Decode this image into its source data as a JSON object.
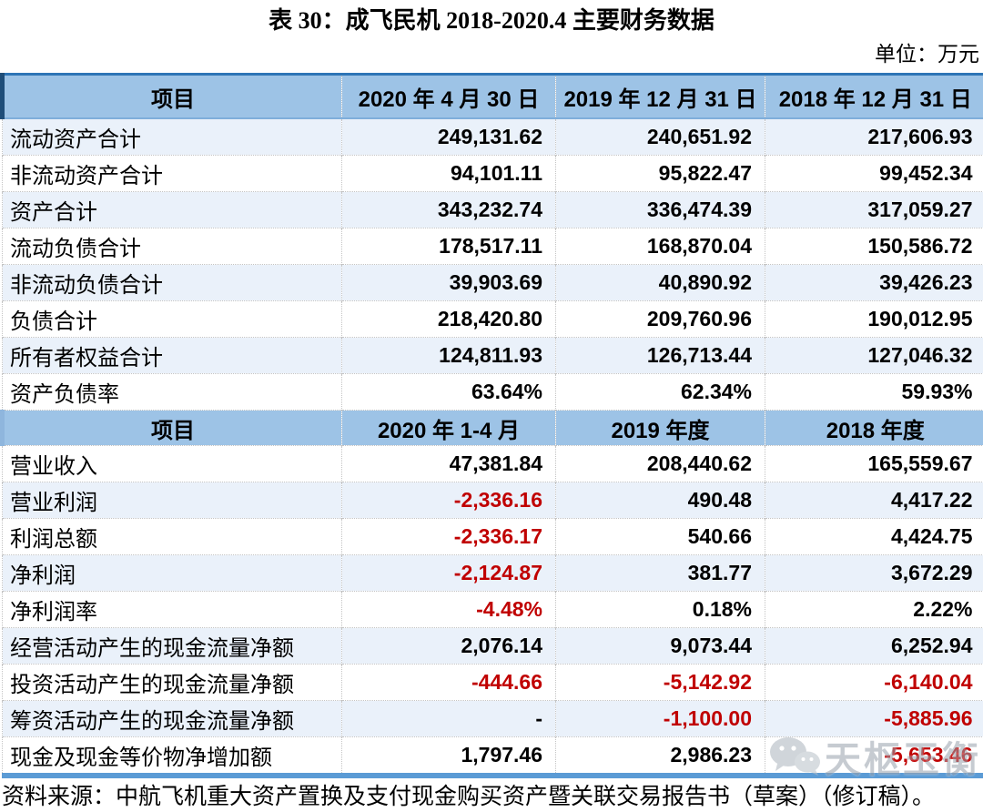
{
  "title": "表 30：成飞民机 2018-2020.4 主要财务数据",
  "unit_note": "单位：万元",
  "source_note": "资料来源：中航飞机重大资产置换及支付现金购买资产暨关联交易报告书（草案）（修订稿）。",
  "watermark": {
    "icon": "wechat-icon",
    "text": "天枢玉衡"
  },
  "colors": {
    "header_bg": "#9DC3E6",
    "alt_row_bg": "#EAF1FA",
    "top_border": "#2E75B6",
    "thick_bottom_border": "#5B9BD5",
    "negative_value": "#C00000"
  },
  "chart_data": {
    "type": "table",
    "title": "表 30：成飞民机 2018-2020.4 主要财务数据",
    "unit": "万元",
    "sections": [
      {
        "headers": [
          "项目",
          "2020 年 4 月 30 日",
          "2019 年 12 月 31 日",
          "2018 年 12 月 31 日"
        ],
        "rows": [
          {
            "label": "流动资产合计",
            "values": [
              "249,131.62",
              "240,651.92",
              "217,606.93"
            ],
            "shaded": true
          },
          {
            "label": "非流动资产合计",
            "values": [
              "94,101.11",
              "95,822.47",
              "99,452.34"
            ],
            "shaded": false
          },
          {
            "label": "资产合计",
            "values": [
              "343,232.74",
              "336,474.39",
              "317,059.27"
            ],
            "shaded": true
          },
          {
            "label": "流动负债合计",
            "values": [
              "178,517.11",
              "168,870.04",
              "150,586.72"
            ],
            "shaded": false
          },
          {
            "label": "非流动负债合计",
            "values": [
              "39,903.69",
              "40,890.92",
              "39,426.23"
            ],
            "shaded": true
          },
          {
            "label": "负债合计",
            "values": [
              "218,420.80",
              "209,760.96",
              "190,012.95"
            ],
            "shaded": false
          },
          {
            "label": "所有者权益合计",
            "values": [
              "124,811.93",
              "126,713.44",
              "127,046.32"
            ],
            "shaded": true
          },
          {
            "label": "资产负债率",
            "values": [
              "63.64%",
              "62.34%",
              "59.93%"
            ],
            "shaded": false
          }
        ]
      },
      {
        "headers": [
          "项目",
          "2020 年 1-4 月",
          "2019 年度",
          "2018 年度"
        ],
        "rows": [
          {
            "label": "营业收入",
            "values": [
              "47,381.84",
              "208,440.62",
              "165,559.67"
            ],
            "shaded": false
          },
          {
            "label": "营业利润",
            "values": [
              "-2,336.16",
              "490.48",
              "4,417.22"
            ],
            "shaded": true
          },
          {
            "label": "利润总额",
            "values": [
              "-2,336.17",
              "540.66",
              "4,424.75"
            ],
            "shaded": false
          },
          {
            "label": "净利润",
            "values": [
              "-2,124.87",
              "381.77",
              "3,672.29"
            ],
            "shaded": true
          },
          {
            "label": "净利润率",
            "values": [
              "-4.48%",
              "0.18%",
              "2.22%"
            ],
            "shaded": false
          },
          {
            "label": "经营活动产生的现金流量净额",
            "values": [
              "2,076.14",
              "9,073.44",
              "6,252.94"
            ],
            "shaded": true
          },
          {
            "label": "投资活动产生的现金流量净额",
            "values": [
              "-444.66",
              "-5,142.92",
              "-6,140.04"
            ],
            "shaded": false
          },
          {
            "label": "筹资活动产生的现金流量净额",
            "values": [
              "-",
              "-1,100.00",
              "-5,885.96"
            ],
            "shaded": true
          },
          {
            "label": "现金及现金等价物净增加额",
            "values": [
              "1,797.46",
              "2,986.23",
              "-5,653.46"
            ],
            "shaded": false
          }
        ]
      }
    ]
  }
}
